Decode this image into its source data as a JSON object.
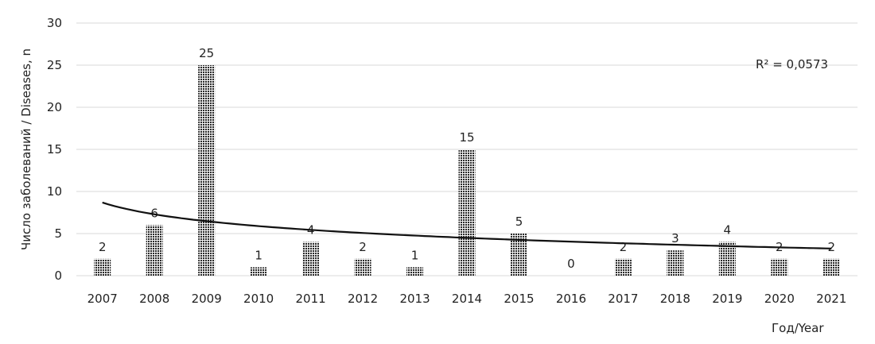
{
  "chart_data": {
    "type": "bar",
    "categories": [
      "2007",
      "2008",
      "2009",
      "2010",
      "2011",
      "2012",
      "2013",
      "2014",
      "2015",
      "2016",
      "2017",
      "2018",
      "2019",
      "2020",
      "2021"
    ],
    "values": [
      2,
      6,
      25,
      1,
      4,
      2,
      1,
      15,
      5,
      0,
      2,
      3,
      4,
      2,
      2
    ],
    "xlabel": "Год/Year",
    "ylabel": "Число заболеваний / Diseases, n",
    "ylim": [
      0,
      30
    ],
    "yticks": [
      0,
      5,
      10,
      15,
      20,
      25,
      30
    ],
    "grid": true,
    "trendline": {
      "type": "logarithmic",
      "label": "R² = 0,0573"
    },
    "bar_pattern": "dotted-dark",
    "colors": {
      "bar": "#333333",
      "trend": "#111111",
      "grid": "#d9d9d9"
    }
  }
}
